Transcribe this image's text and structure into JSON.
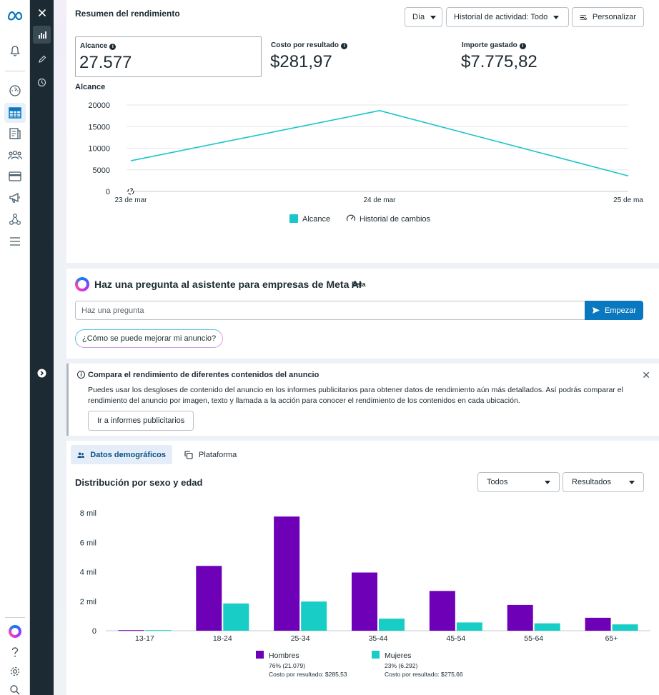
{
  "leftnav": {
    "items": [
      "meta-logo",
      "bell",
      "dashboard",
      "table",
      "pages",
      "audience",
      "billing",
      "megaphone",
      "graph",
      "menu"
    ],
    "bottom": [
      "meta-ai",
      "help",
      "settings",
      "search"
    ]
  },
  "summary": {
    "title": "Resumen del rendimiento",
    "day_label": "Día",
    "history_label": "Historial de actividad: Todo",
    "customize_label": "Personalizar",
    "metrics": [
      {
        "label": "Alcance",
        "value": "27.577"
      },
      {
        "label": "Costo por resultado",
        "value": "$281,97"
      },
      {
        "label": "Importe gastado",
        "value": "$7.775,82"
      }
    ],
    "chart_title": "Alcance"
  },
  "ai": {
    "title": "Haz una pregunta al asistente para empresas de Meta AI",
    "beta": "Beta",
    "placeholder": "Haz una pregunta",
    "start_label": "Empezar",
    "suggestion": "¿Cómo se puede mejorar mi anuncio?"
  },
  "banner": {
    "title": "Compara el rendimiento de diferentes contenidos del anuncio",
    "body": "Puedes usar los desgloses de contenido del anuncio en los informes publicitarios para obtener datos de rendimiento aún más detallados. Así podrás comparar el rendimiento del anuncio por imagen, texto y llamada a la acción para conocer el rendimiento de los contenidos en cada ubicación.",
    "button_label": "Ir a informes publicitarios"
  },
  "demographics": {
    "tabs": [
      "Datos demográficos",
      "Plataforma"
    ],
    "title": "Distribución por sexo y edad",
    "filter_all": "Todos",
    "filter_results": "Resultados"
  },
  "colors": {
    "accent": "#0a78be",
    "line": "#1ac6c9",
    "men": "#6e00b8",
    "women": "#19cdc7"
  },
  "chart_data": [
    {
      "type": "line",
      "x": [
        "23 de mar",
        "24 de mar",
        "25 de ma"
      ],
      "series": [
        {
          "name": "Alcance",
          "values": [
            7100,
            18700,
            3600
          ]
        }
      ],
      "yticks": [
        "0",
        "5000",
        "10000",
        "15000",
        "20000"
      ],
      "ylim": [
        0,
        20000
      ],
      "legend": [
        "Alcance",
        "Historial de cambios"
      ],
      "grid": true
    },
    {
      "type": "bar",
      "categories": [
        "13-17",
        "18-24",
        "25-34",
        "35-44",
        "45-54",
        "55-64",
        "65+"
      ],
      "yticks": [
        "0",
        "2 mil",
        "4 mil",
        "6 mil",
        "8 mil"
      ],
      "ylim": [
        0,
        8000
      ],
      "series": [
        {
          "name": "Hombres",
          "values": [
            40,
            4400,
            7750,
            3950,
            2700,
            1750,
            880
          ],
          "share": "76% (21.079)",
          "cost": "Costo por resultado: $285,53"
        },
        {
          "name": "Mujeres",
          "values": [
            40,
            1850,
            1980,
            820,
            560,
            500,
            430
          ],
          "share": "23% (6.292)",
          "cost": "Costo por resultado: $275,66"
        }
      ],
      "grid": true
    }
  ]
}
